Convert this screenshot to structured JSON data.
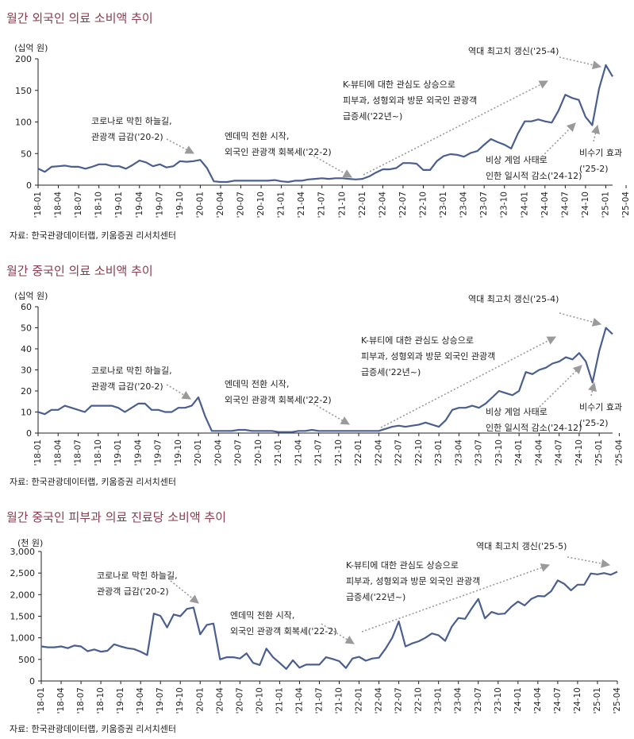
{
  "charts": [
    {
      "title": "월간 외국인 의료 소비액 추이",
      "unit": "(십억 원)",
      "source": "자료: 한국관광데이터랩, 키움증권 리서치센터"
    },
    {
      "title": "월간 중국인 의료 소비액 추이",
      "unit": "(십억 원)",
      "source": "자료: 한국관광데이터랩, 키움증권 리서치센터"
    },
    {
      "title": "월간 중국인 피부과 의료 진료당 소비액 추이",
      "unit": "(천 원)",
      "source": "자료: 한국관광데이터랩, 키움증권 리서치센터"
    }
  ],
  "chart_data": [
    {
      "type": "line",
      "title": "월간 외국인 의료 소비액 추이",
      "ylabel": "(십억 원)",
      "ylim": [
        0,
        200
      ],
      "yticks": [
        "0",
        "50",
        "100",
        "150",
        "200"
      ],
      "xtick_labels": [
        "'18-01",
        "'18-04",
        "'18-07",
        "'18-10",
        "'19-01",
        "'19-04",
        "'19-07",
        "'19-10",
        "'20-01",
        "'20-04",
        "'20-07",
        "'20-10",
        "'21-01",
        "'21-04",
        "'21-07",
        "'21-10",
        "'22-01",
        "'22-04",
        "'22-07",
        "'22-10",
        "'23-01",
        "'23-04",
        "'23-07",
        "'23-10",
        "'24-01",
        "'24-04",
        "'24-07",
        "'24-10",
        "'25-01",
        "'25-04"
      ],
      "x_start": "2018-01",
      "x_end": "2025-05",
      "values": [
        26,
        21,
        29,
        30,
        31,
        29,
        29,
        26,
        29,
        33,
        33,
        30,
        30,
        26,
        32,
        39,
        36,
        30,
        33,
        28,
        30,
        38,
        37,
        38,
        40,
        27,
        6,
        5,
        5,
        7,
        7,
        7,
        7,
        7,
        7,
        8,
        6,
        5,
        7,
        7,
        9,
        10,
        11,
        10,
        11,
        11,
        10,
        9,
        10,
        14,
        20,
        25,
        25,
        27,
        35,
        35,
        34,
        24,
        24,
        38,
        46,
        49,
        48,
        45,
        51,
        54,
        64,
        73,
        68,
        64,
        58,
        82,
        101,
        101,
        104,
        101,
        99,
        118,
        143,
        138,
        135,
        108,
        95,
        153,
        190,
        172
      ],
      "annotations": [
        {
          "text": [
            "역대 최고치 갱신('25-4)"
          ]
        },
        {
          "text": [
            "K-뷰티에 대한 관심도 상승으로",
            "피부과, 성형외과 방문 외국인 관광객",
            "급증세('22년~)"
          ]
        },
        {
          "text": [
            "코로나로 막힌 하늘길,",
            "관광객 급감('20-2)"
          ]
        },
        {
          "text": [
            "엔데믹 전환 시작,",
            "외국인 관광객 회복세('22-2)"
          ]
        },
        {
          "text": [
            "비상 계엄 사태로",
            "인한 일시적 감소('24-12)"
          ]
        },
        {
          "text": [
            "비수기 효과",
            "('25-2)"
          ]
        }
      ]
    },
    {
      "type": "line",
      "title": "월간 중국인 의료 소비액 추이",
      "ylabel": "(십억 원)",
      "ylim": [
        0,
        60
      ],
      "yticks": [
        "0",
        "10",
        "20",
        "30",
        "40",
        "50",
        "60"
      ],
      "xtick_labels": [
        "'18-01",
        "'18-04",
        "'18-07",
        "'18-10",
        "'19-01",
        "'19-04",
        "'19-07",
        "'19-10",
        "'20-01",
        "'20-04",
        "'20-07",
        "'20-10",
        "'21-01",
        "'21-04",
        "'21-07",
        "'21-10",
        "'22-01",
        "'22-04",
        "'22-07",
        "'22-10",
        "'23-01",
        "'23-04",
        "'23-07",
        "'23-10",
        "'24-01",
        "'24-04",
        "'24-07",
        "'24-10",
        "'25-01",
        "'25-04"
      ],
      "x_start": "2018-01",
      "x_end": "2025-05",
      "values": [
        10,
        9,
        11,
        11,
        13,
        12,
        11,
        10,
        13,
        13,
        13,
        13,
        12,
        10,
        12,
        14,
        14,
        11,
        11,
        10,
        10,
        12,
        12,
        13,
        17,
        8,
        1,
        1,
        1,
        1,
        1.5,
        1.5,
        1,
        1,
        1,
        1,
        0.5,
        0.5,
        0.5,
        1,
        1,
        1.5,
        1,
        1,
        1,
        1,
        1,
        1,
        1,
        1,
        1,
        1,
        2,
        3,
        3.5,
        3,
        3.5,
        4,
        5,
        4,
        3,
        6,
        11,
        12,
        12,
        13,
        12,
        14,
        17,
        20,
        19,
        18,
        20,
        29,
        28,
        30,
        31,
        33,
        34,
        36,
        35,
        38,
        34,
        24,
        39,
        50,
        47
      ],
      "annotations": [
        {
          "text": [
            "역대 최고치 갱신('25-4)"
          ]
        },
        {
          "text": [
            "K-뷰티에 대한 관심도 상승으로",
            "피부과, 성형외과 방문 외국인 관광객",
            "급증세('22년~)"
          ]
        },
        {
          "text": [
            "코로나로 막힌 하늘길,",
            "관광객 급감('20-2)"
          ]
        },
        {
          "text": [
            "엔데믹 전환 시작,",
            "외국인 관광객 회복세('22-2)"
          ]
        },
        {
          "text": [
            "비상 계엄 사태로",
            "인한 일시적 감소('24-12)"
          ]
        },
        {
          "text": [
            "비수기 효과",
            "('25-2)"
          ]
        }
      ]
    },
    {
      "type": "line",
      "title": "월간 중국인 피부과 의료 진료당 소비액 추이",
      "ylabel": "(천 원)",
      "ylim": [
        0,
        3000
      ],
      "yticks": [
        "0",
        "500",
        "1,000",
        "1,500",
        "2,000",
        "2,500",
        "3,000"
      ],
      "xtick_labels": [
        "'18-01",
        "'18-04",
        "'18-07",
        "'18-10",
        "'19-01",
        "'19-04",
        "'19-07",
        "'19-10",
        "'20-01",
        "'20-04",
        "'20-07",
        "'20-10",
        "'21-01",
        "'21-04",
        "'21-07",
        "'21-10",
        "'22-01",
        "'22-04",
        "'22-07",
        "'22-10",
        "'23-01",
        "'23-04",
        "'23-07",
        "'23-10",
        "'24-01",
        "'24-04",
        "'24-07",
        "'24-10",
        "'25-01",
        "'25-04"
      ],
      "x_start": "2018-01",
      "x_end": "2025-06",
      "values": [
        800,
        780,
        780,
        800,
        760,
        820,
        800,
        690,
        730,
        680,
        700,
        850,
        800,
        760,
        740,
        680,
        600,
        1560,
        1510,
        1240,
        1540,
        1500,
        1670,
        1700,
        1080,
        1300,
        1330,
        500,
        550,
        550,
        520,
        640,
        420,
        370,
        750,
        550,
        420,
        280,
        480,
        310,
        380,
        380,
        380,
        550,
        510,
        460,
        300,
        520,
        560,
        470,
        520,
        540,
        750,
        1000,
        1380,
        800,
        870,
        920,
        1000,
        1100,
        1060,
        930,
        1260,
        1460,
        1440,
        1680,
        1900,
        1450,
        1600,
        1550,
        1560,
        1720,
        1840,
        1750,
        1900,
        1970,
        1960,
        2080,
        2330,
        2250,
        2100,
        2230,
        2230,
        2490,
        2470,
        2500,
        2460,
        2530
      ],
      "annotations": [
        {
          "text": [
            "역대 최고치 갱신('25-5)"
          ]
        },
        {
          "text": [
            "K-뷰티에 대한 관심도 상승으로",
            "피부과, 성형외과 방문 외국인 관광객",
            "급증세('22년~)"
          ]
        },
        {
          "text": [
            "코로나로 막힌 하늘길,",
            "관광객 급감('20-2)"
          ]
        },
        {
          "text": [
            "엔데믹 전환 시작,",
            "외국인 관광객 회복세('22-2)"
          ]
        }
      ]
    }
  ],
  "colors": {
    "line": "#4a5f8f",
    "title": "#8b3a4e",
    "arrow": "#9a9a9a",
    "axis": "#222222"
  }
}
